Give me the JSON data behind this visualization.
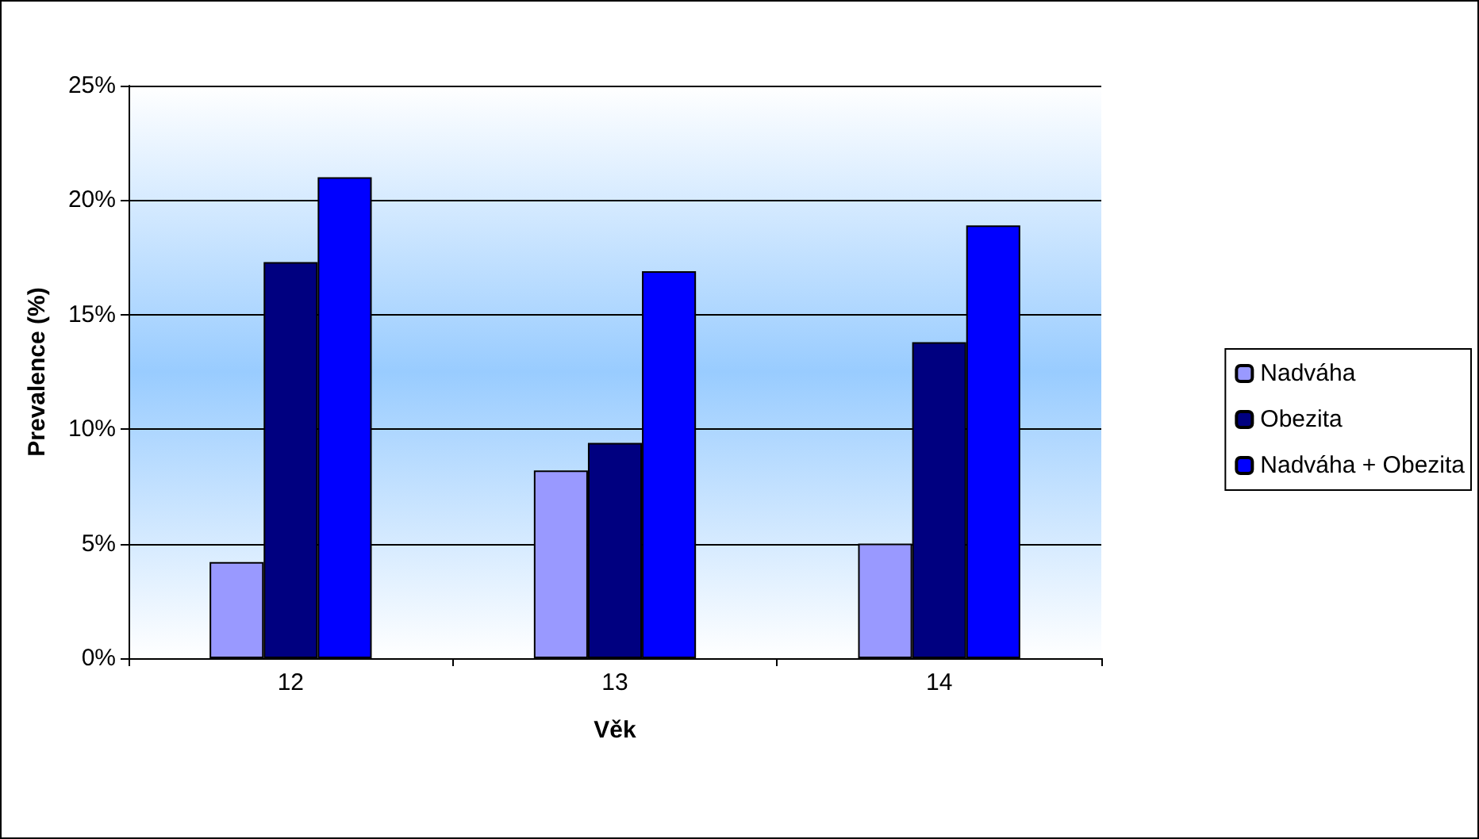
{
  "chart_data": {
    "type": "bar",
    "xlabel": "Věk",
    "ylabel": "Prevalence (%)",
    "categories": [
      "12",
      "13",
      "14"
    ],
    "series": [
      {
        "name": "Nadváha",
        "color": "#9999ff",
        "values": [
          4.2,
          8.2,
          5.0
        ]
      },
      {
        "name": "Obezita",
        "color": "#000080",
        "values": [
          17.3,
          9.4,
          13.8
        ]
      },
      {
        "name": "Nadváha + Obezita",
        "color": "#0000ff",
        "values": [
          21.0,
          16.9,
          18.9
        ]
      }
    ],
    "ylim": [
      0,
      25
    ],
    "yticks": [
      {
        "value": 0,
        "label": "0%"
      },
      {
        "value": 5,
        "label": "5%"
      },
      {
        "value": 10,
        "label": "10%"
      },
      {
        "value": 15,
        "label": "15%"
      },
      {
        "value": 20,
        "label": "20%"
      },
      {
        "value": 25,
        "label": "25%"
      }
    ],
    "grid": "y",
    "legend": "right"
  }
}
